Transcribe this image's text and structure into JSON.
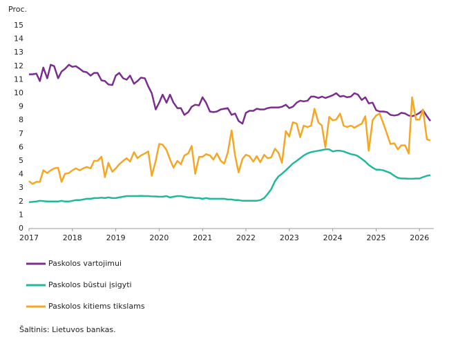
{
  "chart_data": {
    "type": "line",
    "y_label": "Proc.",
    "source": "Šaltinis: Lietuvos bankas.",
    "x": [
      2017.0,
      2017.08,
      2017.17,
      2017.25,
      2017.33,
      2017.42,
      2017.5,
      2017.58,
      2017.67,
      2017.75,
      2017.83,
      2017.92,
      2018.0,
      2018.08,
      2018.17,
      2018.25,
      2018.33,
      2018.42,
      2018.5,
      2018.58,
      2018.67,
      2018.75,
      2018.83,
      2018.92,
      2019.0,
      2019.08,
      2019.17,
      2019.25,
      2019.33,
      2019.42,
      2019.5,
      2019.58,
      2019.67,
      2019.75,
      2019.83,
      2019.92,
      2020.0,
      2020.08,
      2020.17,
      2020.25,
      2020.33,
      2020.42,
      2020.5,
      2020.58,
      2020.67,
      2020.75,
      2020.83,
      2020.92,
      2021.0,
      2021.08,
      2021.17,
      2021.25,
      2021.33,
      2021.42,
      2021.5,
      2021.58,
      2021.67,
      2021.75,
      2021.83,
      2021.92,
      2022.0,
      2022.08,
      2022.17,
      2022.25,
      2022.33,
      2022.42,
      2022.5,
      2022.58,
      2022.67,
      2022.75,
      2022.83,
      2022.92,
      2023.0,
      2023.08,
      2023.17,
      2023.25,
      2023.33,
      2023.42,
      2023.5,
      2023.58,
      2023.67,
      2023.75,
      2023.83,
      2023.92,
      2024.0,
      2024.08,
      2024.17,
      2024.25,
      2024.33,
      2024.42,
      2024.5,
      2024.58,
      2024.67,
      2024.75,
      2024.83,
      2024.92,
      2025.0,
      2025.08,
      2025.17,
      2025.25,
      2025.33,
      2025.42,
      2025.5,
      2025.58,
      2025.67,
      2025.75,
      2025.83,
      2025.92,
      2026.0,
      2026.08,
      2026.17,
      2026.25
    ],
    "series": [
      {
        "name": "Paskolos vartojimui",
        "color": "#7b2d8e",
        "values": [
          11.4,
          11.4,
          11.45,
          10.9,
          11.9,
          11.1,
          12.1,
          12.0,
          11.1,
          11.6,
          11.8,
          12.1,
          11.95,
          12.0,
          11.8,
          11.6,
          11.55,
          11.3,
          11.5,
          11.5,
          10.95,
          10.9,
          10.65,
          10.6,
          11.3,
          11.5,
          11.1,
          11.0,
          11.3,
          10.7,
          10.9,
          11.15,
          11.1,
          10.5,
          10.0,
          8.8,
          9.3,
          9.9,
          9.3,
          9.9,
          9.3,
          8.9,
          8.9,
          8.4,
          8.6,
          9.0,
          9.15,
          9.1,
          9.7,
          9.3,
          8.65,
          8.6,
          8.65,
          8.8,
          8.85,
          8.9,
          8.4,
          8.5,
          7.95,
          7.75,
          8.55,
          8.7,
          8.7,
          8.85,
          8.8,
          8.8,
          8.9,
          8.95,
          8.95,
          8.95,
          9.0,
          9.15,
          8.9,
          9.0,
          9.3,
          9.45,
          9.4,
          9.45,
          9.75,
          9.75,
          9.65,
          9.75,
          9.65,
          9.75,
          9.85,
          10.0,
          9.75,
          9.8,
          9.7,
          9.75,
          10.0,
          9.9,
          9.5,
          9.7,
          9.25,
          9.3,
          8.75,
          8.65,
          8.65,
          8.6,
          8.4,
          8.35,
          8.4,
          8.55,
          8.5,
          8.35,
          8.3,
          8.4,
          8.55,
          8.75,
          8.3,
          7.95
        ]
      },
      {
        "name": "Paskolos būstui įsigyti",
        "color": "#1fb99a",
        "values": [
          1.95,
          1.97,
          2.0,
          2.05,
          2.03,
          2.0,
          2.0,
          2.0,
          2.0,
          2.05,
          2.0,
          2.0,
          2.05,
          2.1,
          2.1,
          2.15,
          2.2,
          2.2,
          2.25,
          2.25,
          2.28,
          2.25,
          2.3,
          2.25,
          2.25,
          2.3,
          2.35,
          2.4,
          2.4,
          2.4,
          2.4,
          2.42,
          2.4,
          2.4,
          2.38,
          2.37,
          2.35,
          2.35,
          2.4,
          2.3,
          2.35,
          2.4,
          2.4,
          2.35,
          2.3,
          2.3,
          2.25,
          2.25,
          2.2,
          2.25,
          2.2,
          2.2,
          2.2,
          2.2,
          2.2,
          2.15,
          2.15,
          2.1,
          2.1,
          2.05,
          2.05,
          2.05,
          2.05,
          2.05,
          2.1,
          2.25,
          2.55,
          2.9,
          3.5,
          3.85,
          4.05,
          4.3,
          4.55,
          4.8,
          5.0,
          5.2,
          5.4,
          5.55,
          5.65,
          5.7,
          5.75,
          5.8,
          5.85,
          5.85,
          5.7,
          5.75,
          5.75,
          5.7,
          5.6,
          5.5,
          5.45,
          5.35,
          5.15,
          4.95,
          4.7,
          4.5,
          4.35,
          4.35,
          4.3,
          4.2,
          4.1,
          3.9,
          3.75,
          3.7,
          3.7,
          3.68,
          3.68,
          3.7,
          3.7,
          3.8,
          3.9,
          3.95
        ]
      },
      {
        "name": "Paskolos kitiems tikslams",
        "color": "#f5a623",
        "values": [
          3.5,
          3.3,
          3.45,
          3.45,
          4.3,
          4.1,
          4.3,
          4.45,
          4.5,
          3.45,
          4.05,
          4.1,
          4.3,
          4.45,
          4.3,
          4.45,
          4.55,
          4.45,
          5.0,
          5.0,
          5.3,
          3.8,
          4.85,
          4.2,
          4.45,
          4.75,
          5.0,
          5.2,
          4.95,
          5.65,
          5.2,
          5.4,
          5.55,
          5.7,
          3.9,
          5.0,
          6.25,
          6.2,
          5.8,
          5.1,
          4.5,
          5.0,
          4.75,
          5.4,
          5.55,
          6.1,
          4.05,
          5.3,
          5.3,
          5.5,
          5.4,
          5.1,
          5.55,
          5.0,
          4.8,
          5.6,
          7.25,
          5.4,
          4.15,
          5.15,
          5.45,
          5.35,
          4.95,
          5.35,
          4.9,
          5.45,
          5.2,
          5.25,
          5.9,
          5.6,
          4.85,
          7.2,
          6.8,
          7.85,
          7.75,
          6.75,
          7.6,
          7.5,
          7.6,
          8.85,
          7.85,
          7.6,
          6.0,
          8.25,
          8.0,
          8.05,
          8.5,
          7.6,
          7.5,
          7.6,
          7.45,
          7.6,
          7.75,
          8.3,
          5.75,
          8.0,
          8.35,
          8.5,
          7.75,
          7.0,
          6.25,
          6.3,
          5.85,
          6.15,
          6.15,
          5.55,
          9.7,
          8.05,
          8.05,
          8.8,
          6.6,
          6.5
        ]
      }
    ],
    "xlim": [
      2017,
      2026.33
    ],
    "xticks": [
      2017,
      2018,
      2019,
      2020,
      2021,
      2022,
      2023,
      2024,
      2025,
      2026
    ],
    "ylim": [
      0,
      15
    ],
    "yticks": [
      0,
      1,
      2,
      3,
      4,
      5,
      6,
      7,
      8,
      9,
      10,
      11,
      12,
      13,
      14,
      15
    ],
    "grid": false
  }
}
